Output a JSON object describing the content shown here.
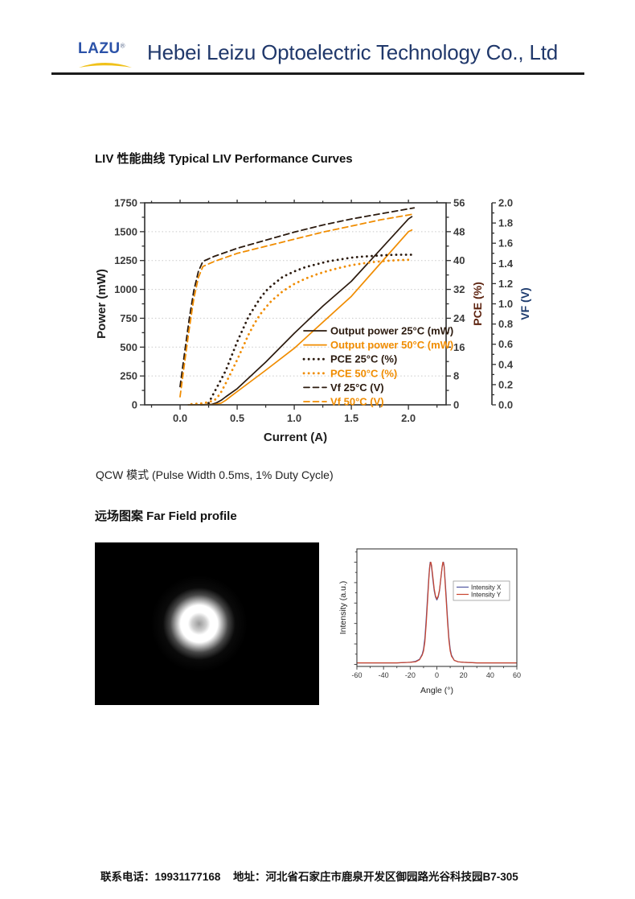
{
  "header": {
    "logo_text": "LAZU",
    "logo_reg": "®",
    "company_name": "Hebei Leizu Optoelectric Technology Co., Ltd"
  },
  "sections": {
    "liv_title": "LIV 性能曲线 Typical LIV Performance Curves",
    "qcw_note": "QCW 模式  (Pulse Width 0.5ms, 1% Duty Cycle)",
    "farfield_title": "远场图案 Far Field profile"
  },
  "footer": {
    "phone_label": "联系电话：",
    "phone": "19931177168",
    "address_label": "地址：",
    "address": "河北省石家庄市鹿泉开发区御园路光谷科技园B7-305"
  },
  "colors": {
    "temp25": "#2b1a0e",
    "temp50": "#f08c00",
    "pce_axis_label": "#5e2410",
    "vf_axis_label": "#1e3c6e",
    "intensity_x": "#5057a0",
    "intensity_y": "#c8442e",
    "header_text": "#20386b",
    "logo_blue": "#2b52a8",
    "logo_yellow": "#f0c11a"
  },
  "chart_data": [
    {
      "type": "line",
      "title": "Typical LIV Performance Curves",
      "xlabel": "Current (A)",
      "ylabel_left": "Power (mW)",
      "ylabel_right1": "PCE (%)",
      "ylabel_right2": "VF (V)",
      "xlim": [
        -0.31,
        2.33
      ],
      "xticks": [
        0.0,
        0.5,
        1.0,
        1.5,
        2.0
      ],
      "ylim_left": [
        0,
        1750
      ],
      "yticks_left": [
        0,
        250,
        500,
        750,
        1000,
        1250,
        1500,
        1750
      ],
      "ylim_right1": [
        0,
        56
      ],
      "yticks_right1": [
        0,
        8,
        16,
        24,
        32,
        40,
        48,
        56
      ],
      "ylim_right2": [
        0.0,
        2.0
      ],
      "yticks_right2": [
        0.0,
        0.2,
        0.4,
        0.6,
        0.8,
        1.0,
        1.2,
        1.4,
        1.6,
        1.8,
        2.0
      ],
      "grid": "horizontal-dotted",
      "legend_position": "inside-lower-right",
      "series": [
        {
          "name": "Output power 25°C (mW)",
          "axis": "left",
          "style": "solid",
          "color": "#2b1a0e",
          "x": [
            0.18,
            0.28,
            0.32,
            0.36,
            0.4,
            0.5,
            0.75,
            1.0,
            1.25,
            1.5,
            1.75,
            2.0,
            2.03
          ],
          "y": [
            0,
            5,
            18,
            40,
            70,
            140,
            370,
            620,
            855,
            1070,
            1340,
            1610,
            1630
          ]
        },
        {
          "name": "Output power 50°C (mW)",
          "axis": "left",
          "style": "solid",
          "color": "#f08c00",
          "x": [
            0.07,
            0.3,
            0.36,
            0.4,
            0.45,
            0.5,
            0.75,
            1.0,
            1.25,
            1.5,
            1.75,
            2.0,
            2.03
          ],
          "y": [
            0,
            3,
            15,
            40,
            78,
            115,
            300,
            490,
            715,
            940,
            1220,
            1500,
            1515
          ]
        },
        {
          "name": "PCE 25°C (%)",
          "axis": "right1",
          "style": "dotted",
          "color": "#2b1a0e",
          "x": [
            0.25,
            0.3,
            0.35,
            0.4,
            0.45,
            0.5,
            0.55,
            0.6,
            0.65,
            0.7,
            0.75,
            0.8,
            0.9,
            1.0,
            1.1,
            1.2,
            1.3,
            1.4,
            1.5,
            1.6,
            1.7,
            1.8,
            1.9,
            2.0,
            2.03
          ],
          "y": [
            0.5,
            3.5,
            6.5,
            9.5,
            13.5,
            17.5,
            21,
            24.5,
            27,
            29.5,
            31.5,
            33,
            35.5,
            37,
            38.2,
            39,
            39.8,
            40.3,
            40.8,
            41.1,
            41.3,
            41.5,
            41.6,
            41.6,
            41.6
          ]
        },
        {
          "name": "PCE 50°C (%)",
          "axis": "right1",
          "style": "dotted",
          "color": "#f08c00",
          "x": [
            0.1,
            0.2,
            0.3,
            0.35,
            0.4,
            0.45,
            0.5,
            0.55,
            0.6,
            0.65,
            0.7,
            0.75,
            0.8,
            0.9,
            1.0,
            1.1,
            1.2,
            1.3,
            1.4,
            1.5,
            1.6,
            1.7,
            1.8,
            1.9,
            2.0,
            2.03
          ],
          "y": [
            0.2,
            0.4,
            1.2,
            3,
            6,
            9.2,
            12.5,
            16,
            19.5,
            22.5,
            25,
            27,
            28.8,
            31.5,
            33.5,
            35,
            36.2,
            37.2,
            38,
            38.7,
            39.2,
            39.6,
            39.9,
            40.1,
            40.2,
            40.1
          ]
        },
        {
          "name": "Vf 25°C (V)",
          "axis": "right2",
          "style": "dashed",
          "color": "#2b1a0e",
          "x": [
            0,
            0.04,
            0.08,
            0.12,
            0.16,
            0.2,
            0.3,
            0.4,
            0.5,
            0.75,
            1.0,
            1.25,
            1.5,
            1.75,
            2.0,
            2.05
          ],
          "y": [
            0.18,
            0.52,
            0.85,
            1.13,
            1.32,
            1.42,
            1.47,
            1.51,
            1.55,
            1.63,
            1.71,
            1.78,
            1.84,
            1.89,
            1.94,
            1.95
          ]
        },
        {
          "name": "Vf 50°C (V)",
          "axis": "right2",
          "style": "dashed",
          "color": "#f08c00",
          "x": [
            0,
            0.04,
            0.08,
            0.12,
            0.16,
            0.2,
            0.3,
            0.4,
            0.5,
            0.75,
            1.0,
            1.25,
            1.5,
            1.75,
            2.0,
            2.05
          ],
          "y": [
            0.08,
            0.42,
            0.75,
            1.05,
            1.26,
            1.37,
            1.42,
            1.46,
            1.5,
            1.57,
            1.64,
            1.71,
            1.77,
            1.83,
            1.88,
            1.89
          ]
        }
      ]
    },
    {
      "type": "line",
      "title": "Far Field profile",
      "xlabel": "Angle (°)",
      "ylabel": "Intensity (a.u.)",
      "xlim": [
        -60,
        60
      ],
      "xticks": [
        -60,
        -40,
        -20,
        0,
        20,
        40,
        60
      ],
      "ylim": [
        -0.02,
        1.13
      ],
      "legend_position": "inside-upper-right",
      "series": [
        {
          "name": "Intensity X",
          "color": "#5057a0",
          "x": [
            -60,
            -30,
            -20,
            -16,
            -13,
            -11,
            -10,
            -9,
            -8,
            -7,
            -6,
            -5.5,
            -5,
            -4.5,
            -4,
            -3,
            -2,
            -1,
            0,
            1,
            2,
            3,
            4,
            4.5,
            5,
            5.5,
            6,
            7,
            8,
            9,
            10,
            11,
            13,
            16,
            20,
            30,
            60
          ],
          "y": [
            0.015,
            0.015,
            0.02,
            0.03,
            0.05,
            0.1,
            0.15,
            0.26,
            0.44,
            0.66,
            0.86,
            0.95,
            1.0,
            0.99,
            0.95,
            0.83,
            0.72,
            0.66,
            0.63,
            0.66,
            0.72,
            0.84,
            0.95,
            0.99,
            1.0,
            0.96,
            0.87,
            0.67,
            0.45,
            0.27,
            0.15,
            0.09,
            0.04,
            0.025,
            0.02,
            0.015,
            0.015
          ]
        },
        {
          "name": "Intensity Y",
          "color": "#c8442e",
          "x": [
            -60,
            -30,
            -20,
            -16,
            -13,
            -11,
            -10,
            -9,
            -8,
            -7,
            -6,
            -5.5,
            -5,
            -4.5,
            -4,
            -3,
            -2,
            -1,
            0,
            1,
            2,
            3,
            4,
            4.5,
            5,
            5.5,
            6,
            7,
            8,
            9,
            10,
            11,
            13,
            16,
            20,
            30,
            60
          ],
          "y": [
            0.015,
            0.015,
            0.02,
            0.025,
            0.045,
            0.09,
            0.13,
            0.22,
            0.39,
            0.61,
            0.83,
            0.93,
            0.99,
            1.0,
            0.97,
            0.86,
            0.74,
            0.67,
            0.64,
            0.67,
            0.73,
            0.85,
            0.96,
            1.0,
            0.99,
            0.95,
            0.84,
            0.63,
            0.41,
            0.24,
            0.13,
            0.08,
            0.04,
            0.025,
            0.02,
            0.015,
            0.015
          ]
        }
      ]
    }
  ]
}
